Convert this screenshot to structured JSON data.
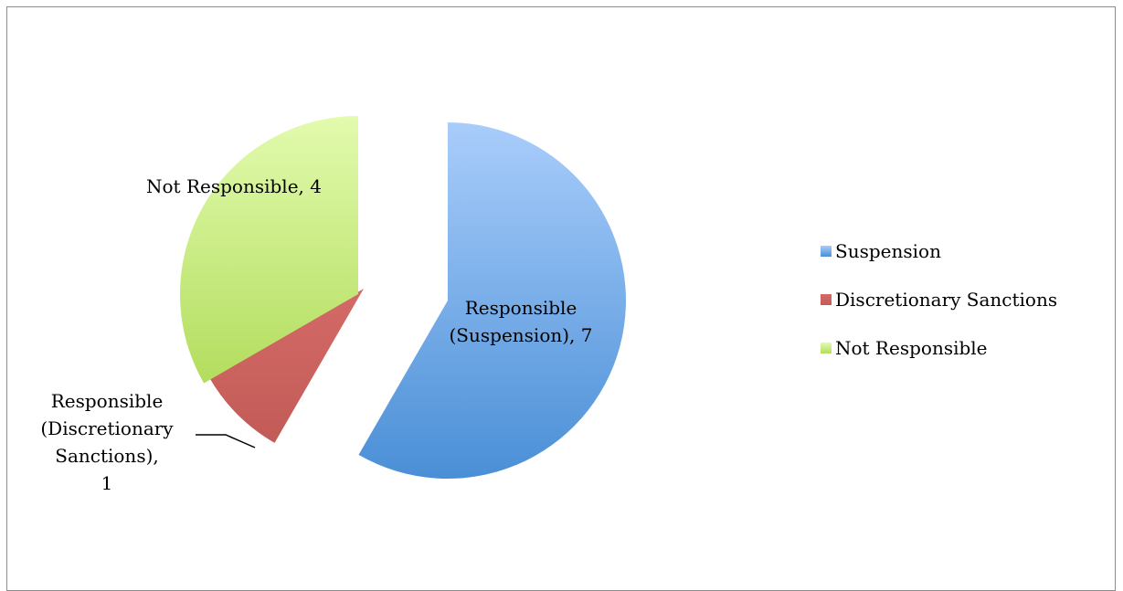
{
  "chart_data": {
    "type": "pie",
    "title": "",
    "exploded": true,
    "legend_position": "right",
    "slices": [
      {
        "legend": "Suspension",
        "value": 7,
        "label_lines": [
          "Responsible",
          "(Suspension), 7"
        ],
        "color": "#5b9bd5",
        "gradient": [
          "#a9cdfb",
          "#4a8fd6"
        ]
      },
      {
        "legend": "Discretionary Sanctions",
        "value": 1,
        "label_lines": [
          "Responsible",
          "(Discretionary",
          "Sanctions),",
          "1"
        ],
        "color": "#c0504d",
        "gradient": [
          "#d46a67",
          "#c25b57"
        ]
      },
      {
        "legend": "Not Responsible",
        "value": 4,
        "label_lines": [
          "Not Responsible, 4"
        ],
        "color": "#9bbb59",
        "gradient": [
          "#e2fbae",
          "#b3dd5e"
        ]
      }
    ]
  }
}
